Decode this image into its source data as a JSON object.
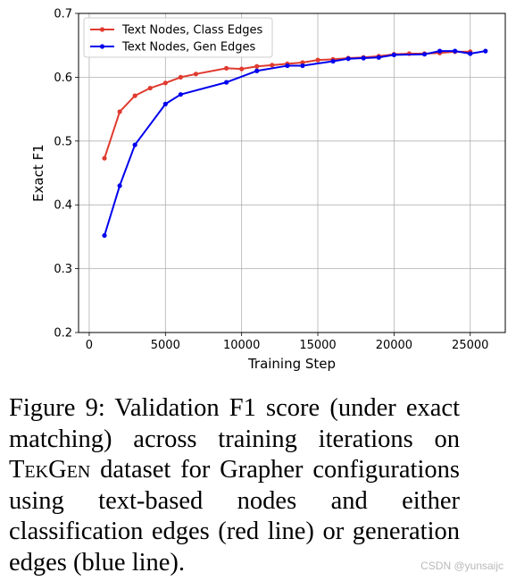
{
  "chart_data": {
    "type": "line",
    "title": "",
    "xlabel": "Training Step",
    "ylabel": "Exact F1",
    "xlim": [
      -700,
      27300
    ],
    "ylim": [
      0.2,
      0.7
    ],
    "xticks": [
      0,
      5000,
      10000,
      15000,
      20000,
      25000
    ],
    "xtick_labels": [
      "0",
      "5000",
      "10000",
      "15000",
      "20000",
      "25000"
    ],
    "yticks": [
      0.2,
      0.3,
      0.4,
      0.5,
      0.6,
      0.7
    ],
    "ytick_labels": [
      "0.2",
      "0.3",
      "0.4",
      "0.5",
      "0.6",
      "0.7"
    ],
    "grid": true,
    "legend_position": "top-left",
    "series": [
      {
        "name": "Text Nodes, Class Edges",
        "color": "#e03a2f",
        "x": [
          1000,
          2000,
          3000,
          4000,
          5000,
          6000,
          7000,
          9000,
          10000,
          11000,
          12000,
          13000,
          14000,
          15000,
          16000,
          17000,
          18000,
          19000,
          20000,
          21000,
          22000,
          23000,
          24000,
          25000
        ],
        "y": [
          0.473,
          0.546,
          0.571,
          0.583,
          0.591,
          0.6,
          0.605,
          0.614,
          0.613,
          0.617,
          0.619,
          0.621,
          0.623,
          0.627,
          0.628,
          0.63,
          0.631,
          0.633,
          0.636,
          0.637,
          0.637,
          0.638,
          0.64,
          0.64
        ]
      },
      {
        "name": "Text Nodes, Gen Edges",
        "color": "#0000ee",
        "x": [
          1000,
          2000,
          3000,
          5000,
          6000,
          9000,
          11000,
          13000,
          14000,
          16000,
          17000,
          18000,
          19000,
          20000,
          22000,
          23000,
          24000,
          25000,
          26000
        ],
        "y": [
          0.352,
          0.43,
          0.494,
          0.558,
          0.573,
          0.592,
          0.61,
          0.618,
          0.618,
          0.625,
          0.629,
          0.63,
          0.631,
          0.635,
          0.636,
          0.641,
          0.641,
          0.637,
          0.641
        ]
      }
    ]
  },
  "caption": {
    "label": "Figure 9:",
    "text_before": " Validation F1 score (under exact matching) across training iterations on ",
    "dataset_name": "TekGen",
    "text_after": " dataset for Grapher configurations using text-based nodes and either classification edges (red line) or generation edges (blue line)."
  },
  "watermark": "CSDN @yunsaijc"
}
